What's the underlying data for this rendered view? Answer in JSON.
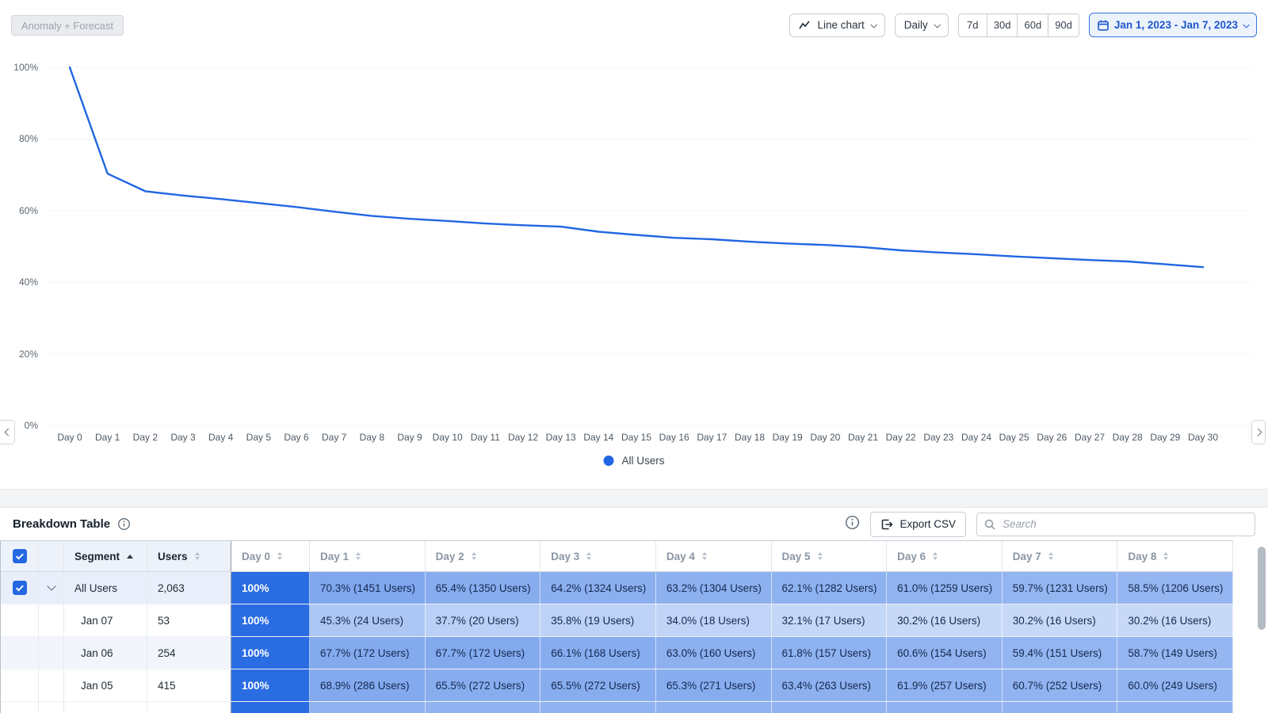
{
  "toolbar": {
    "anomaly_forecast_label": "Anomaly + Forecast",
    "chart_type_label": "Line chart",
    "granularity_label": "Daily",
    "range_buttons": [
      "7d",
      "30d",
      "60d",
      "90d"
    ],
    "date_range_label": "Jan 1, 2023 - Jan 7, 2023"
  },
  "chart_data": {
    "type": "line",
    "title": "",
    "x": [
      "Day 0",
      "Day 1",
      "Day 2",
      "Day 3",
      "Day 4",
      "Day 5",
      "Day 6",
      "Day 7",
      "Day 8",
      "Day 9",
      "Day 10",
      "Day 11",
      "Day 12",
      "Day 13",
      "Day 14",
      "Day 15",
      "Day 16",
      "Day 17",
      "Day 18",
      "Day 19",
      "Day 20",
      "Day 21",
      "Day 22",
      "Day 23",
      "Day 24",
      "Day 25",
      "Day 26",
      "Day 27",
      "Day 28",
      "Day 29",
      "Day 30"
    ],
    "yticks": [
      "100%",
      "80%",
      "60%",
      "40%",
      "20%",
      "0%"
    ],
    "ylim": [
      0,
      100
    ],
    "grid": true,
    "legend_position": "bottom",
    "series": [
      {
        "name": "All Users",
        "color": "#2166e2",
        "values": [
          100,
          70.3,
          65.4,
          64.2,
          63.2,
          62.1,
          61,
          59.7,
          58.5,
          57.7,
          57.1,
          56.4,
          55.9,
          55.5,
          54.1,
          53.2,
          52.4,
          52,
          51.3,
          50.8,
          50.4,
          49.8,
          48.9,
          48.3,
          47.8,
          47.2,
          46.7,
          46.2,
          45.8,
          45,
          44.2
        ]
      }
    ]
  },
  "breakdown": {
    "title": "Breakdown Table",
    "export_label": "Export CSV",
    "search_placeholder": "Search",
    "columns": [
      "Segment",
      "Users",
      "Day 0",
      "Day 1",
      "Day 2",
      "Day 3",
      "Day 4",
      "Day 5",
      "Day 6",
      "Day 7",
      "Day 8"
    ],
    "sorted_column": "Segment",
    "colors": {
      "cell_full": "#2a6ce2",
      "cell_base_rgb": "42,108,226"
    },
    "rows": [
      {
        "segment": "All Users",
        "users": "2,063",
        "checked": true,
        "expanded": true,
        "days": [
          "100%",
          "70.3% (1451 Users)",
          "65.4% (1350 Users)",
          "64.2% (1324 Users)",
          "63.2% (1304 Users)",
          "62.1% (1282 Users)",
          "61.0% (1259 Users)",
          "59.7% (1231 Users)",
          "58.5% (1206 Users)"
        ]
      },
      {
        "segment": "Jan 07",
        "users": "53",
        "days": [
          "100%",
          "45.3% (24 Users)",
          "37.7% (20 Users)",
          "35.8% (19 Users)",
          "34.0% (18 Users)",
          "32.1% (17 Users)",
          "30.2% (16 Users)",
          "30.2% (16 Users)",
          "30.2% (16 Users)"
        ]
      },
      {
        "segment": "Jan 06",
        "users": "254",
        "days": [
          "100%",
          "67.7% (172 Users)",
          "67.7% (172 Users)",
          "66.1% (168 Users)",
          "63.0% (160 Users)",
          "61.8% (157 Users)",
          "60.6% (154 Users)",
          "59.4% (151 Users)",
          "58.7% (149 Users)"
        ]
      },
      {
        "segment": "Jan 05",
        "users": "415",
        "days": [
          "100%",
          "68.9% (286 Users)",
          "65.5% (272 Users)",
          "65.5% (272 Users)",
          "65.3% (271 Users)",
          "63.4% (263 Users)",
          "61.9% (257 Users)",
          "60.7% (252 Users)",
          "60.0% (249 Users)"
        ]
      }
    ]
  }
}
